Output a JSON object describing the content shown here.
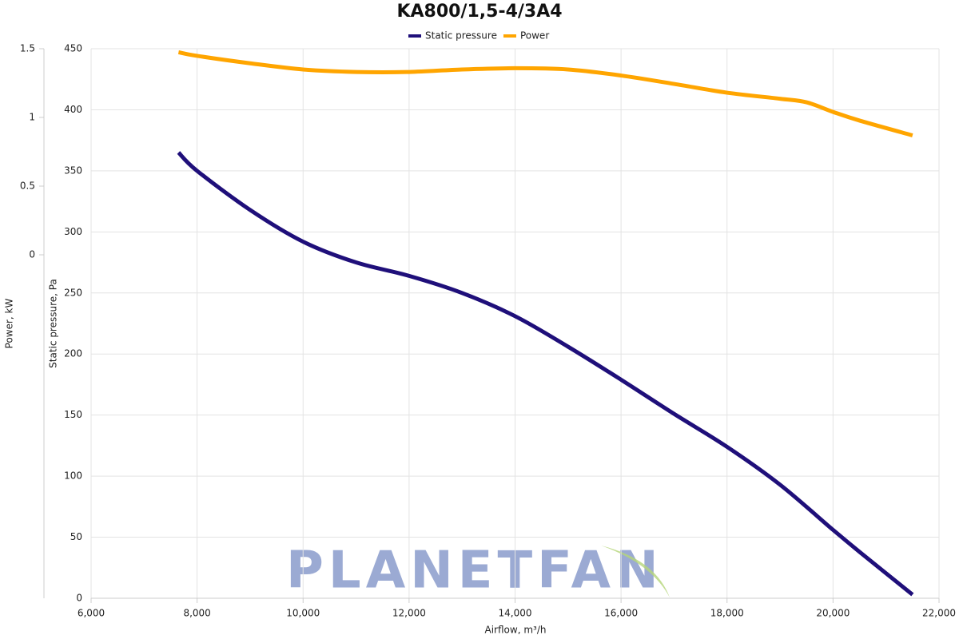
{
  "chart_data": {
    "type": "line",
    "title": "KA800/1,5-4/3A4",
    "x_label": "Airflow, m³/h",
    "y_label": "Static pressure, Pa",
    "y2_label": "Power, kW",
    "watermark": "PLANETFAN",
    "xlim": [
      6000,
      22000
    ],
    "xticks": [
      {
        "value": 6000,
        "label": "6,000"
      },
      {
        "value": 8000,
        "label": "8,000"
      },
      {
        "value": 10000,
        "label": "10,000"
      },
      {
        "value": 12000,
        "label": "12,000"
      },
      {
        "value": 14000,
        "label": "14,000"
      },
      {
        "value": 16000,
        "label": "16,000"
      },
      {
        "value": 18000,
        "label": "18,000"
      },
      {
        "value": 20000,
        "label": "20,000"
      },
      {
        "value": 22000,
        "label": "22,000"
      }
    ],
    "ylim": [
      0,
      450
    ],
    "yticks": [
      0,
      50,
      100,
      150,
      200,
      250,
      300,
      350,
      400,
      450
    ],
    "y2lim": [
      -2.5,
      1.5
    ],
    "y2ticks": [
      0,
      0.5,
      1,
      1.5
    ],
    "grid": true,
    "legend": "top",
    "series": [
      {
        "name": "Static pressure",
        "color": "#1f0f7a",
        "x": [
          7650,
          8000,
          9000,
          10000,
          11000,
          12000,
          13000,
          14000,
          15000,
          16000,
          17000,
          18000,
          19000,
          20000,
          20500,
          21500
        ],
        "values": [
          365,
          350,
          318,
          292,
          275,
          264,
          250,
          231,
          206,
          179,
          151,
          124,
          93,
          56,
          38,
          3
        ]
      },
      {
        "name": "Power",
        "color": "#ffa500",
        "axis": "y2",
        "x": [
          7650,
          8000,
          9000,
          10000,
          11000,
          12000,
          13000,
          14000,
          15000,
          16000,
          17000,
          18000,
          19000,
          19500,
          20000,
          20500,
          21500
        ],
        "values": [
          1.474,
          1.448,
          1.394,
          1.349,
          1.331,
          1.331,
          1.349,
          1.358,
          1.349,
          1.305,
          1.244,
          1.18,
          1.136,
          1.11,
          1.04,
          0.977,
          0.869
        ]
      }
    ]
  }
}
